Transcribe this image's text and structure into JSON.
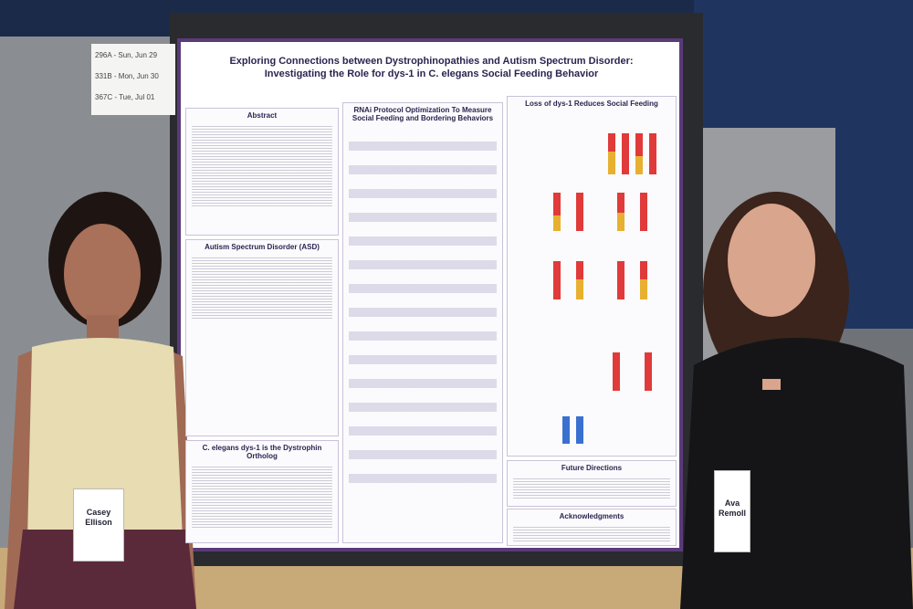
{
  "signs": [
    "296A - Sun, Jun 29",
    "331B - Mon, Jun 30",
    "367C - Tue, Jul 01"
  ],
  "poster": {
    "title_lines": [
      "Exploring Connections between Dystrophinopathies and Autism Spectrum Disorder:",
      "Investigating the Role for dys-1 in C. elegans Social Feeding Behavior"
    ],
    "sections": [
      "Abstract",
      "Autism Spectrum Disorder (ASD)",
      "C. elegans dys-1 is the Dystrophin Ortholog",
      "RNAi Protocol Optimization To Measure Social Feeding and Bordering Behaviors",
      "Loss of dys-1 Reduces Social Feeding",
      "Future Directions",
      "Acknowledgments"
    ]
  },
  "badges": [
    "Casey Ellison",
    "Ava Remoll"
  ]
}
